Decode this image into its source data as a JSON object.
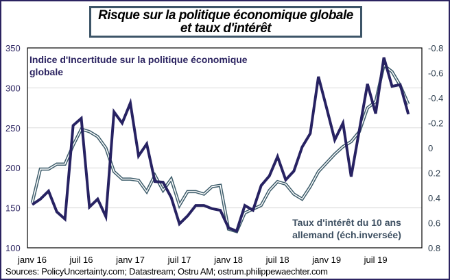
{
  "title": {
    "line1": "Risque sur la politique économique globale",
    "line2": "et taux d'intérêt"
  },
  "source": "Sources: PolicyUncertainty.com; Datastream; Ostru AM;  ostrum.philippewaechter.com",
  "colors": {
    "epu": "#272262",
    "bond_outer": "#3d5c6a",
    "bond_inner": "#ffffff",
    "frame": "#2b2360",
    "grid": "#d9d9d9"
  },
  "chart_data": {
    "type": "line",
    "title": "Risque sur la politique économique globale et taux d'intérêt",
    "x": [
      "2016-01",
      "2016-02",
      "2016-03",
      "2016-04",
      "2016-05",
      "2016-06",
      "2016-07",
      "2016-08",
      "2016-09",
      "2016-10",
      "2016-11",
      "2016-12",
      "2017-01",
      "2017-02",
      "2017-03",
      "2017-04",
      "2017-05",
      "2017-06",
      "2017-07",
      "2017-08",
      "2017-09",
      "2017-10",
      "2017-11",
      "2017-12",
      "2018-01",
      "2018-02",
      "2018-03",
      "2018-04",
      "2018-05",
      "2018-06",
      "2018-07",
      "2018-08",
      "2018-09",
      "2018-10",
      "2018-11",
      "2018-12",
      "2019-01",
      "2019-02",
      "2019-03",
      "2019-04",
      "2019-05",
      "2019-06",
      "2019-07",
      "2019-08",
      "2019-09",
      "2019-10",
      "2019-11"
    ],
    "x_tick_labels": [
      "janv 16",
      "juil 16",
      "janv 17",
      "juil 17",
      "janv 18",
      "juil 18",
      "janv 19",
      "juil 19"
    ],
    "x_tick_index": [
      0,
      6,
      12,
      18,
      24,
      30,
      36,
      42
    ],
    "y_left": {
      "ticks": [
        "350",
        "300",
        "250",
        "200",
        "150",
        "100"
      ],
      "ylim": [
        100,
        350
      ]
    },
    "y_right": {
      "ticks": [
        "-0.8",
        "-0.6",
        "-0.4",
        "-0.2",
        "0",
        "0.2",
        "0.4",
        "0.6",
        "0.8"
      ],
      "ylim": [
        -0.8,
        0.8
      ],
      "inverted": true
    },
    "grid": true,
    "series": [
      {
        "name": "Indice d'Incertitude sur la politique économique globale",
        "axis": "left",
        "values": [
          154,
          161,
          171,
          145,
          136,
          253,
          262,
          151,
          161,
          139,
          270,
          256,
          281,
          215,
          230,
          183,
          182,
          163,
          130,
          140,
          153,
          153,
          149,
          147,
          125,
          121,
          153,
          147,
          178,
          190,
          214,
          185,
          196,
          226,
          243,
          314,
          275,
          235,
          256,
          189,
          247,
          305,
          268,
          338,
          302,
          304,
          267
        ]
      },
      {
        "name": "Taux d'intérêt du 10 ans allemand (éch.inversée)",
        "axis": "right",
        "values": [
          0.44,
          0.17,
          0.17,
          0.13,
          0.13,
          -0.02,
          -0.15,
          -0.13,
          -0.09,
          0.0,
          0.19,
          0.25,
          0.25,
          0.26,
          0.35,
          0.22,
          0.34,
          0.25,
          0.46,
          0.35,
          0.35,
          0.37,
          0.31,
          0.3,
          0.65,
          0.67,
          0.52,
          0.49,
          0.46,
          0.34,
          0.27,
          0.29,
          0.37,
          0.41,
          0.31,
          0.19,
          0.12,
          0.05,
          -0.01,
          -0.05,
          -0.13,
          -0.32,
          -0.37,
          -0.66,
          -0.61,
          -0.5,
          -0.35
        ]
      }
    ],
    "legend": {
      "epu_label_line1": "Indice d'Incertitude sur la politique économique",
      "epu_label_line2": "globale",
      "bond_label_line1": "Taux d'intérêt du 10 ans",
      "bond_label_line2": "allemand (éch.inversée)",
      "epu_position": "top-left",
      "bond_position": "bottom-right"
    }
  }
}
